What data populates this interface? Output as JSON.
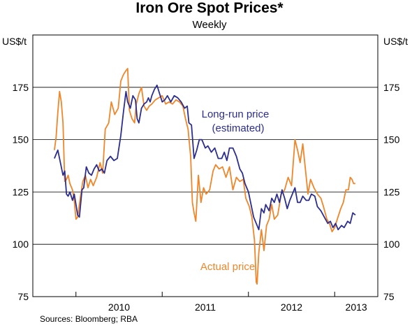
{
  "chart_data": {
    "type": "line",
    "title": "Iron Ore Spot Prices*",
    "subtitle": "Weekly",
    "left_unit": "US$/t",
    "right_unit": "US$/t",
    "ylim": [
      75,
      200
    ],
    "yticks": [
      75,
      100,
      125,
      150,
      175
    ],
    "ytick_labels": [
      "75",
      "100",
      "125",
      "150",
      "175"
    ],
    "xlim": [
      2009.5,
      2013.5
    ],
    "xtick_boundaries": [
      2010,
      2011,
      2012,
      2013
    ],
    "xtick_labels": [
      {
        "label": "2010",
        "x": 2010.5
      },
      {
        "label": "2011",
        "x": 2011.5
      },
      {
        "label": "2012",
        "x": 2012.5
      },
      {
        "label": "2013",
        "x": 2013.5
      }
    ],
    "source": "Sources: Bloomberg; RBA",
    "annotations": [
      {
        "text": "Long-run price",
        "series": "Long-run price"
      },
      {
        "text": "(estimated)",
        "series": "Long-run price"
      },
      {
        "text": "Actual price",
        "series": "Actual price"
      }
    ],
    "series": [
      {
        "name": "Long-run price",
        "color": "#2b2e8e",
        "points": [
          [
            2009.75,
            141
          ],
          [
            2009.77,
            143
          ],
          [
            2009.79,
            145
          ],
          [
            2009.82,
            139
          ],
          [
            2009.85,
            133
          ],
          [
            2009.87,
            135
          ],
          [
            2009.89,
            124
          ],
          [
            2009.91,
            123
          ],
          [
            2009.93,
            125
          ],
          [
            2009.96,
            121
          ],
          [
            2009.98,
            124
          ],
          [
            2010.0,
            119
          ],
          [
            2010.02,
            114
          ],
          [
            2010.04,
            113
          ],
          [
            2010.07,
            126
          ],
          [
            2010.09,
            127
          ],
          [
            2010.12,
            137
          ],
          [
            2010.15,
            134
          ],
          [
            2010.18,
            133
          ],
          [
            2010.21,
            136
          ],
          [
            2010.24,
            138
          ],
          [
            2010.27,
            135
          ],
          [
            2010.3,
            136
          ],
          [
            2010.33,
            134
          ],
          [
            2010.36,
            140
          ],
          [
            2010.4,
            142
          ],
          [
            2010.44,
            140
          ],
          [
            2010.48,
            141
          ],
          [
            2010.52,
            152
          ],
          [
            2010.55,
            163
          ],
          [
            2010.58,
            173
          ],
          [
            2010.6,
            168
          ],
          [
            2010.63,
            165
          ],
          [
            2010.66,
            171
          ],
          [
            2010.69,
            169
          ],
          [
            2010.71,
            160
          ],
          [
            2010.73,
            158
          ],
          [
            2010.76,
            165
          ],
          [
            2010.79,
            167
          ],
          [
            2010.82,
            168
          ],
          [
            2010.84,
            170
          ],
          [
            2010.86,
            168
          ],
          [
            2010.88,
            171
          ],
          [
            2010.91,
            174
          ],
          [
            2010.94,
            176
          ],
          [
            2010.97,
            172
          ],
          [
            2011.0,
            168
          ],
          [
            2011.03,
            169
          ],
          [
            2011.06,
            171
          ],
          [
            2011.1,
            168
          ],
          [
            2011.14,
            171
          ],
          [
            2011.18,
            170
          ],
          [
            2011.22,
            168
          ],
          [
            2011.26,
            165
          ],
          [
            2011.29,
            166
          ],
          [
            2011.31,
            158
          ],
          [
            2011.34,
            157
          ],
          [
            2011.37,
            141
          ],
          [
            2011.4,
            145
          ],
          [
            2011.43,
            150
          ],
          [
            2011.46,
            150
          ],
          [
            2011.5,
            146
          ],
          [
            2011.53,
            147
          ],
          [
            2011.57,
            144
          ],
          [
            2011.61,
            146
          ],
          [
            2011.65,
            141
          ],
          [
            2011.69,
            141
          ],
          [
            2011.72,
            144
          ],
          [
            2011.75,
            140
          ],
          [
            2011.78,
            146
          ],
          [
            2011.82,
            146
          ],
          [
            2011.86,
            142
          ],
          [
            2011.9,
            136
          ],
          [
            2011.93,
            134
          ],
          [
            2011.96,
            129
          ],
          [
            2012.0,
            125
          ],
          [
            2012.03,
            119
          ],
          [
            2012.06,
            113
          ],
          [
            2012.09,
            110
          ],
          [
            2012.12,
            107
          ],
          [
            2012.15,
            117
          ],
          [
            2012.18,
            115
          ],
          [
            2012.2,
            119
          ],
          [
            2012.24,
            116
          ],
          [
            2012.27,
            122
          ],
          [
            2012.3,
            120
          ],
          [
            2012.33,
            124
          ],
          [
            2012.36,
            120
          ],
          [
            2012.39,
            126
          ],
          [
            2012.42,
            122
          ],
          [
            2012.45,
            117
          ],
          [
            2012.48,
            121
          ],
          [
            2012.51,
            124
          ],
          [
            2012.54,
            127
          ],
          [
            2012.57,
            120
          ],
          [
            2012.6,
            120
          ],
          [
            2012.63,
            123
          ],
          [
            2012.67,
            121
          ],
          [
            2012.7,
            121
          ],
          [
            2012.73,
            124
          ],
          [
            2012.77,
            123
          ],
          [
            2012.8,
            118
          ],
          [
            2012.84,
            116
          ],
          [
            2012.88,
            113
          ],
          [
            2012.92,
            110
          ],
          [
            2012.95,
            111
          ],
          [
            2012.98,
            108
          ],
          [
            2013.01,
            110
          ],
          [
            2013.04,
            107
          ],
          [
            2013.08,
            109
          ],
          [
            2013.11,
            108
          ],
          [
            2013.15,
            111
          ],
          [
            2013.18,
            110
          ],
          [
            2013.21,
            115
          ],
          [
            2013.24,
            114
          ]
        ]
      },
      {
        "name": "Actual price",
        "color": "#f0862a",
        "points": [
          [
            2009.75,
            145
          ],
          [
            2009.77,
            151
          ],
          [
            2009.79,
            163
          ],
          [
            2009.81,
            173
          ],
          [
            2009.83,
            168
          ],
          [
            2009.85,
            158
          ],
          [
            2009.87,
            130
          ],
          [
            2009.89,
            131
          ],
          [
            2009.91,
            133
          ],
          [
            2009.93,
            129
          ],
          [
            2009.96,
            126
          ],
          [
            2009.98,
            121
          ],
          [
            2010.0,
            112
          ],
          [
            2010.02,
            113
          ],
          [
            2010.05,
            122
          ],
          [
            2010.08,
            130
          ],
          [
            2010.11,
            133
          ],
          [
            2010.14,
            127
          ],
          [
            2010.17,
            131
          ],
          [
            2010.2,
            128
          ],
          [
            2010.24,
            132
          ],
          [
            2010.28,
            139
          ],
          [
            2010.31,
            134
          ],
          [
            2010.34,
            155
          ],
          [
            2010.38,
            158
          ],
          [
            2010.41,
            168
          ],
          [
            2010.45,
            162
          ],
          [
            2010.49,
            165
          ],
          [
            2010.52,
            178
          ],
          [
            2010.55,
            181
          ],
          [
            2010.58,
            183
          ],
          [
            2010.6,
            184
          ],
          [
            2010.62,
            164
          ],
          [
            2010.65,
            160
          ],
          [
            2010.68,
            158
          ],
          [
            2010.7,
            167
          ],
          [
            2010.73,
            172
          ],
          [
            2010.76,
            175
          ],
          [
            2010.79,
            166
          ],
          [
            2010.82,
            164
          ],
          [
            2010.85,
            166
          ],
          [
            2010.88,
            167
          ],
          [
            2010.92,
            169
          ],
          [
            2010.96,
            170
          ],
          [
            2011.0,
            171
          ],
          [
            2011.04,
            167
          ],
          [
            2011.08,
            168
          ],
          [
            2011.12,
            167
          ],
          [
            2011.16,
            169
          ],
          [
            2011.2,
            168
          ],
          [
            2011.24,
            166
          ],
          [
            2011.27,
            160
          ],
          [
            2011.3,
            155
          ],
          [
            2011.33,
            142
          ],
          [
            2011.35,
            120
          ],
          [
            2011.37,
            115
          ],
          [
            2011.39,
            111
          ],
          [
            2011.42,
            133
          ],
          [
            2011.45,
            120
          ],
          [
            2011.48,
            127
          ],
          [
            2011.51,
            124
          ],
          [
            2011.55,
            126
          ],
          [
            2011.59,
            135
          ],
          [
            2011.62,
            138
          ],
          [
            2011.66,
            136
          ],
          [
            2011.7,
            137
          ],
          [
            2011.74,
            132
          ],
          [
            2011.78,
            137
          ],
          [
            2011.82,
            126
          ],
          [
            2011.86,
            132
          ],
          [
            2011.9,
            130
          ],
          [
            2011.94,
            131
          ],
          [
            2011.97,
            122
          ],
          [
            2012.01,
            118
          ],
          [
            2012.04,
            113
          ],
          [
            2012.07,
            102
          ],
          [
            2012.09,
            82
          ],
          [
            2012.1,
            81
          ],
          [
            2012.12,
            96
          ],
          [
            2012.15,
            107
          ],
          [
            2012.18,
            97
          ],
          [
            2012.21,
            109
          ],
          [
            2012.24,
            112
          ],
          [
            2012.27,
            119
          ],
          [
            2012.3,
            112
          ],
          [
            2012.34,
            114
          ],
          [
            2012.38,
            124
          ],
          [
            2012.42,
            126
          ],
          [
            2012.46,
            132
          ],
          [
            2012.5,
            128
          ],
          [
            2012.54,
            150
          ],
          [
            2012.57,
            145
          ],
          [
            2012.6,
            139
          ],
          [
            2012.63,
            148
          ],
          [
            2012.66,
            136
          ],
          [
            2012.69,
            124
          ],
          [
            2012.72,
            131
          ],
          [
            2012.76,
            127
          ],
          [
            2012.8,
            124
          ],
          [
            2012.84,
            122
          ],
          [
            2012.87,
            118
          ],
          [
            2012.91,
            112
          ],
          [
            2012.94,
            110
          ],
          [
            2012.97,
            106
          ],
          [
            2013.0,
            108
          ],
          [
            2013.03,
            112
          ],
          [
            2013.07,
            117
          ],
          [
            2013.1,
            120
          ],
          [
            2013.13,
            126
          ],
          [
            2013.16,
            126
          ],
          [
            2013.18,
            132
          ],
          [
            2013.2,
            131
          ],
          [
            2013.22,
            129
          ],
          [
            2013.24,
            129
          ]
        ]
      }
    ]
  }
}
